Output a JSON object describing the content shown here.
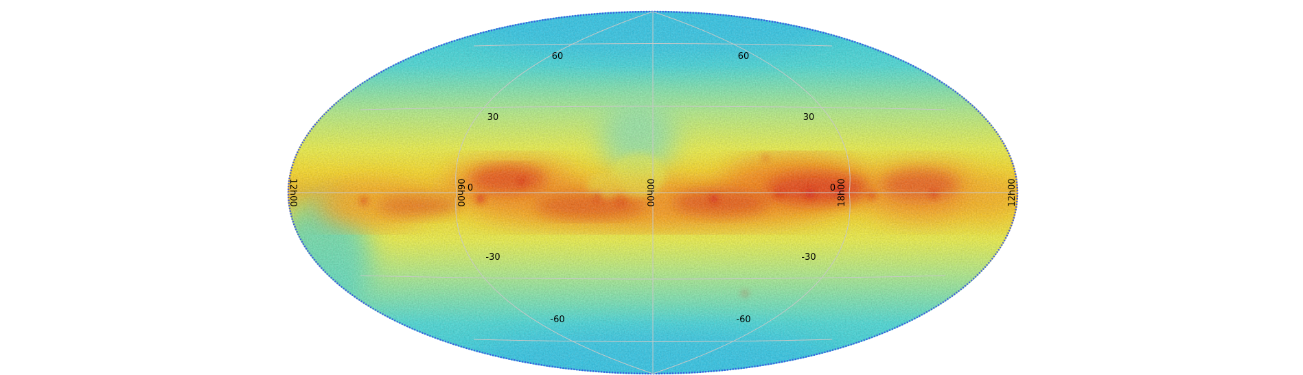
{
  "projection": "aitoff/mollweide all-sky",
  "colormap": [
    "#1e2fd0",
    "#2ad8f0",
    "#b8f57a",
    "#f8f82a",
    "#ff9a10",
    "#e82010"
  ],
  "grid_color": "#c8c8c8",
  "latitude_labels": {
    "north_60": "60",
    "north_30": "30",
    "equator": "0",
    "south_30": "-30",
    "south_60": "-60"
  },
  "meridian_labels": {
    "left_edge": "12h00",
    "left_inner": "06h00",
    "center": "00h00",
    "right_inner": "18h00",
    "right_edge": "12h00"
  }
}
